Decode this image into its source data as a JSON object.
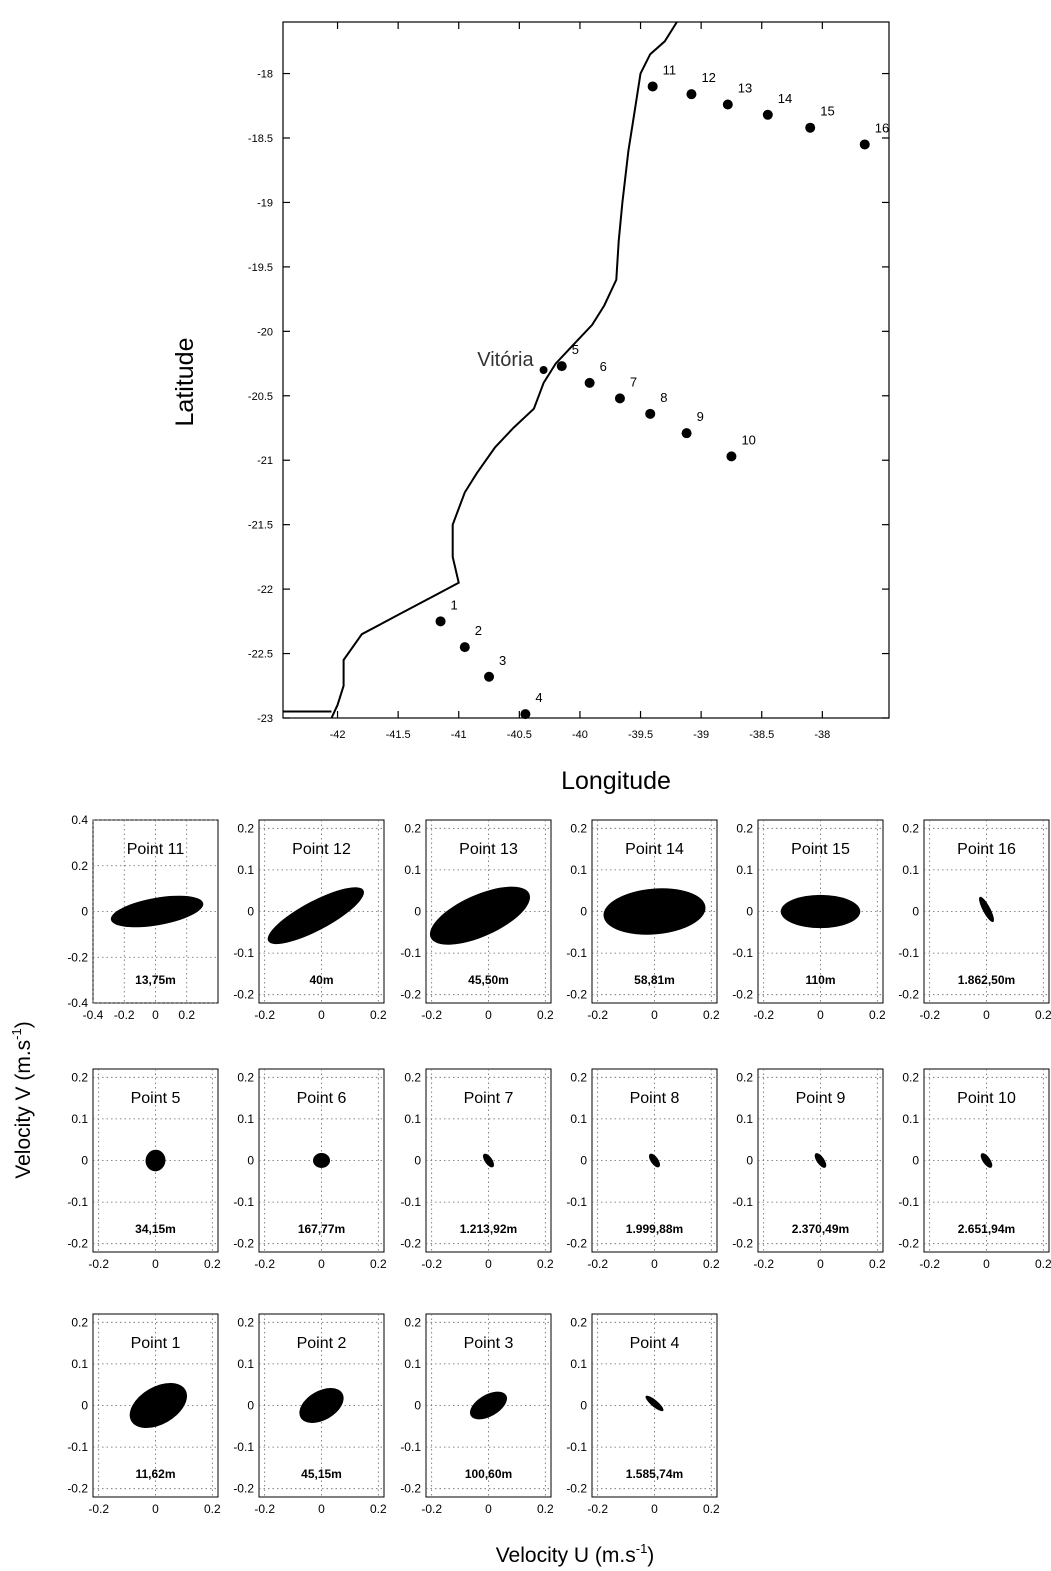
{
  "map": {
    "xlabel": "Longitude",
    "ylabel": "Latitude",
    "city_label": "Vitória",
    "x_ticks": [
      "-42",
      "-41.5",
      "-41",
      "-40.5",
      "-40",
      "-39.5",
      "-39",
      "-38.5",
      "-38"
    ],
    "x_tick_values": [
      -42,
      -41.5,
      -41,
      -40.5,
      -40,
      -39.5,
      -39,
      -38.5,
      -38
    ],
    "y_ticks": [
      "-18",
      "-18.5",
      "-19",
      "-19.5",
      "-20",
      "-20.5",
      "-21",
      "-21.5",
      "-22",
      "-22.5",
      "-23"
    ],
    "y_tick_values": [
      -18,
      -18.5,
      -19,
      -19.5,
      -20,
      -20.5,
      -21,
      -21.5,
      -22,
      -22.5,
      -23
    ],
    "xlim": [
      -42.45,
      -37.45
    ],
    "ylim": [
      -23.0,
      -17.6
    ],
    "city": {
      "lon": -40.3,
      "lat": -20.3
    },
    "points": [
      {
        "label": "1",
        "lon": -41.15,
        "lat": -22.25
      },
      {
        "label": "2",
        "lon": -40.95,
        "lat": -22.45
      },
      {
        "label": "3",
        "lon": -40.75,
        "lat": -22.68
      },
      {
        "label": "4",
        "lon": -40.45,
        "lat": -22.97
      },
      {
        "label": "5",
        "lon": -40.15,
        "lat": -20.27
      },
      {
        "label": "6",
        "lon": -39.92,
        "lat": -20.4
      },
      {
        "label": "7",
        "lon": -39.67,
        "lat": -20.52
      },
      {
        "label": "8",
        "lon": -39.42,
        "lat": -20.64
      },
      {
        "label": "9",
        "lon": -39.12,
        "lat": -20.79
      },
      {
        "label": "10",
        "lon": -38.75,
        "lat": -20.97
      },
      {
        "label": "11",
        "lon": -39.4,
        "lat": -18.1
      },
      {
        "label": "12",
        "lon": -39.08,
        "lat": -18.16
      },
      {
        "label": "13",
        "lon": -38.78,
        "lat": -18.24
      },
      {
        "label": "14",
        "lon": -38.45,
        "lat": -18.32
      },
      {
        "label": "15",
        "lon": -38.1,
        "lat": -18.42
      },
      {
        "label": "16",
        "lon": -37.65,
        "lat": -18.55
      }
    ]
  },
  "chart_data": {
    "type": "scatter",
    "xlabel": "Velocity U (m.s-1)",
    "ylabel": "Velocity V (m.s-1)",
    "xlabel_main": "Velocity U (m.s",
    "ylabel_main": "Velocity V (m.s",
    "unit_sup": "-1",
    "unit_close": ")",
    "panels": [
      {
        "title": "Point 11",
        "depth": "13,75m",
        "lim": 0.4,
        "ticks": [
          "-0.4",
          "-0.2",
          "0",
          "0.2"
        ],
        "tick_values": [
          -0.4,
          -0.2,
          0,
          0.2
        ],
        "yticks": [
          "0.4",
          "0.2",
          "0",
          "-0.2",
          "-0.4"
        ],
        "ytick_values": [
          0.4,
          0.2,
          0,
          -0.2,
          -0.4
        ],
        "ellipse": {
          "cx": 0.01,
          "cy": 0.0,
          "a": 0.3,
          "b": 0.06,
          "angle_deg": 10
        }
      },
      {
        "title": "Point 12",
        "depth": "40m",
        "lim": 0.22,
        "ticks": [
          "-0.2",
          "0",
          "0.2"
        ],
        "tick_values": [
          -0.2,
          0,
          0.2
        ],
        "yticks": [
          "0.2",
          "0.1",
          "0",
          "-0.1",
          "-0.2"
        ],
        "ytick_values": [
          0.2,
          0.1,
          0,
          -0.1,
          -0.2
        ],
        "ellipse": {
          "cx": -0.02,
          "cy": -0.01,
          "a": 0.19,
          "b": 0.035,
          "angle_deg": 28
        }
      },
      {
        "title": "Point 13",
        "depth": "45,50m",
        "lim": 0.22,
        "ticks": [
          "-0.2",
          "0",
          "0.2"
        ],
        "tick_values": [
          -0.2,
          0,
          0.2
        ],
        "yticks": [
          "0.2",
          "0.1",
          "0",
          "-0.1",
          "-0.2"
        ],
        "ytick_values": [
          0.2,
          0.1,
          0,
          -0.1,
          -0.2
        ],
        "ellipse": {
          "cx": -0.03,
          "cy": -0.01,
          "a": 0.19,
          "b": 0.05,
          "angle_deg": 24
        }
      },
      {
        "title": "Point 14",
        "depth": "58,81m",
        "lim": 0.22,
        "ticks": [
          "-0.2",
          "0",
          "0.2"
        ],
        "tick_values": [
          -0.2,
          0,
          0.2
        ],
        "yticks": [
          "0.2",
          "0.1",
          "0",
          "-0.1",
          "-0.2"
        ],
        "ytick_values": [
          0.2,
          0.1,
          0,
          -0.1,
          -0.2
        ],
        "ellipse": {
          "cx": 0.0,
          "cy": 0.0,
          "a": 0.18,
          "b": 0.055,
          "angle_deg": 5
        }
      },
      {
        "title": "Point 15",
        "depth": "110m",
        "lim": 0.22,
        "ticks": [
          "-0.2",
          "0",
          "0.2"
        ],
        "tick_values": [
          -0.2,
          0,
          0.2
        ],
        "yticks": [
          "0.2",
          "0.1",
          "0",
          "-0.1",
          "-0.2"
        ],
        "ytick_values": [
          0.2,
          0.1,
          0,
          -0.1,
          -0.2
        ],
        "ellipse": {
          "cx": 0.0,
          "cy": 0.0,
          "a": 0.14,
          "b": 0.04,
          "angle_deg": 0
        }
      },
      {
        "title": "Point 16",
        "depth": "1.862,50m",
        "lim": 0.22,
        "ticks": [
          "-0.2",
          "0",
          "0.2"
        ],
        "tick_values": [
          -0.2,
          0,
          0.2
        ],
        "yticks": [
          "0.2",
          "0.1",
          "0",
          "-0.1",
          "-0.2"
        ],
        "ytick_values": [
          0.2,
          0.1,
          0,
          -0.1,
          -0.2
        ],
        "ellipse": {
          "cx": 0.0,
          "cy": 0.005,
          "a": 0.05,
          "b": 0.009,
          "angle_deg": -62
        }
      },
      {
        "title": "Point 5",
        "depth": "34,15m",
        "lim": 0.22,
        "ticks": [
          "-0.2",
          "0",
          "0.2"
        ],
        "tick_values": [
          -0.2,
          0,
          0.2
        ],
        "yticks": [
          "0.2",
          "0.1",
          "0",
          "-0.1",
          "-0.2"
        ],
        "ytick_values": [
          0.2,
          0.1,
          0,
          -0.1,
          -0.2
        ],
        "ellipse": {
          "cx": 0.0,
          "cy": 0.0,
          "a": 0.035,
          "b": 0.026,
          "angle_deg": -10
        }
      },
      {
        "title": "Point 6",
        "depth": "167,77m",
        "lim": 0.22,
        "ticks": [
          "-0.2",
          "0",
          "0.2"
        ],
        "tick_values": [
          -0.2,
          0,
          0.2
        ],
        "yticks": [
          "0.2",
          "0.1",
          "0",
          "-0.1",
          "-0.2"
        ],
        "ytick_values": [
          0.2,
          0.1,
          0,
          -0.1,
          -0.2
        ],
        "ellipse": {
          "cx": 0.0,
          "cy": 0.0,
          "a": 0.03,
          "b": 0.018,
          "angle_deg": 0
        }
      },
      {
        "title": "Point 7",
        "depth": "1.213,92m",
        "lim": 0.22,
        "ticks": [
          "-0.2",
          "0",
          "0.2"
        ],
        "tick_values": [
          -0.2,
          0,
          0.2
        ],
        "yticks": [
          "0.2",
          "0.1",
          "0",
          "-0.1",
          "-0.2"
        ],
        "ytick_values": [
          0.2,
          0.1,
          0,
          -0.1,
          -0.2
        ],
        "ellipse": {
          "cx": 0.0,
          "cy": 0.0,
          "a": 0.028,
          "b": 0.009,
          "angle_deg": -55
        }
      },
      {
        "title": "Point 8",
        "depth": "1.999,88m",
        "lim": 0.22,
        "ticks": [
          "-0.2",
          "0",
          "0.2"
        ],
        "tick_values": [
          -0.2,
          0,
          0.2
        ],
        "yticks": [
          "0.2",
          "0.1",
          "0",
          "-0.1",
          "-0.2"
        ],
        "ytick_values": [
          0.2,
          0.1,
          0,
          -0.1,
          -0.2
        ],
        "ellipse": {
          "cx": 0.0,
          "cy": 0.0,
          "a": 0.028,
          "b": 0.009,
          "angle_deg": -55
        }
      },
      {
        "title": "Point 9",
        "depth": "2.370,49m",
        "lim": 0.22,
        "ticks": [
          "-0.2",
          "0",
          "0.2"
        ],
        "tick_values": [
          -0.2,
          0,
          0.2
        ],
        "yticks": [
          "0.2",
          "0.1",
          "0",
          "-0.1",
          "-0.2"
        ],
        "ytick_values": [
          0.2,
          0.1,
          0,
          -0.1,
          -0.2
        ],
        "ellipse": {
          "cx": 0.0,
          "cy": 0.0,
          "a": 0.03,
          "b": 0.009,
          "angle_deg": -55
        }
      },
      {
        "title": "Point 10",
        "depth": "2.651,94m",
        "lim": 0.22,
        "ticks": [
          "-0.2",
          "0",
          "0.2"
        ],
        "tick_values": [
          -0.2,
          0,
          0.2
        ],
        "yticks": [
          "0.2",
          "0.1",
          "0",
          "-0.1",
          "-0.2"
        ],
        "ytick_values": [
          0.2,
          0.1,
          0,
          -0.1,
          -0.2
        ],
        "ellipse": {
          "cx": 0.0,
          "cy": 0.0,
          "a": 0.03,
          "b": 0.009,
          "angle_deg": -55
        }
      },
      {
        "title": "Point 1",
        "depth": "11,62m",
        "lim": 0.22,
        "ticks": [
          "-0.2",
          "0",
          "0.2"
        ],
        "tick_values": [
          -0.2,
          0,
          0.2
        ],
        "yticks": [
          "0.2",
          "0.1",
          "0",
          "-0.1",
          "-0.2"
        ],
        "ytick_values": [
          0.2,
          0.1,
          0,
          -0.1,
          -0.2
        ],
        "ellipse": {
          "cx": 0.01,
          "cy": 0.0,
          "a": 0.11,
          "b": 0.045,
          "angle_deg": 30
        }
      },
      {
        "title": "Point 2",
        "depth": "45,15m",
        "lim": 0.22,
        "ticks": [
          "-0.2",
          "0",
          "0.2"
        ],
        "tick_values": [
          -0.2,
          0,
          0.2
        ],
        "yticks": [
          "0.2",
          "0.1",
          "0",
          "-0.1",
          "-0.2"
        ],
        "ytick_values": [
          0.2,
          0.1,
          0,
          -0.1,
          -0.2
        ],
        "ellipse": {
          "cx": 0.0,
          "cy": 0.0,
          "a": 0.085,
          "b": 0.035,
          "angle_deg": 30
        }
      },
      {
        "title": "Point 3",
        "depth": "100,60m",
        "lim": 0.22,
        "ticks": [
          "-0.2",
          "0",
          "0.2"
        ],
        "tick_values": [
          -0.2,
          0,
          0.2
        ],
        "yticks": [
          "0.2",
          "0.1",
          "0",
          "-0.1",
          "-0.2"
        ],
        "ytick_values": [
          0.2,
          0.1,
          0,
          -0.1,
          -0.2
        ],
        "ellipse": {
          "cx": 0.0,
          "cy": 0.0,
          "a": 0.072,
          "b": 0.026,
          "angle_deg": 30
        }
      },
      {
        "title": "Point 4",
        "depth": "1.585,74m",
        "lim": 0.22,
        "ticks": [
          "-0.2",
          "0",
          "0.2"
        ],
        "tick_values": [
          -0.2,
          0,
          0.2
        ],
        "yticks": [
          "0.2",
          "0.1",
          "0",
          "-0.1",
          "-0.2"
        ],
        "ytick_values": [
          0.2,
          0.1,
          0,
          -0.1,
          -0.2
        ],
        "ellipse": {
          "cx": 0.0,
          "cy": 0.005,
          "a": 0.04,
          "b": 0.008,
          "angle_deg": -40
        }
      }
    ]
  }
}
